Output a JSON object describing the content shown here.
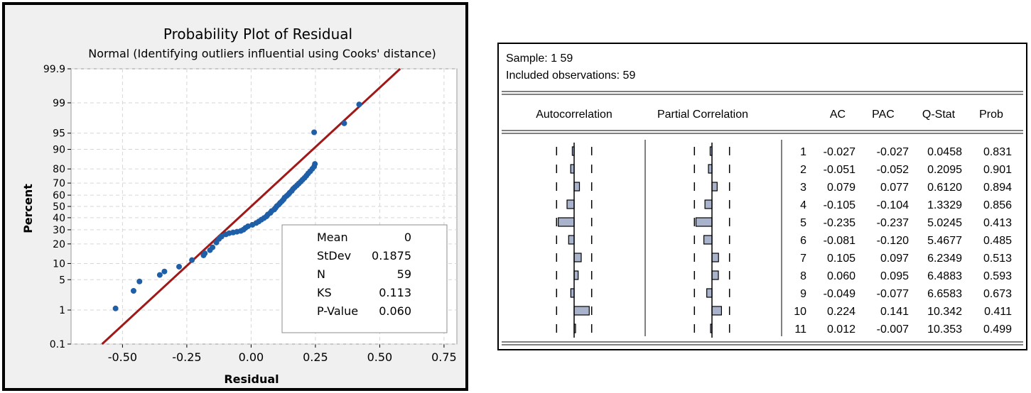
{
  "chart_data": [
    {
      "type": "scatter",
      "title": "Probability Plot of Residual",
      "subtitle": "Normal (Identifying outliers influential using Cooks' distance)",
      "xlabel": "Residual",
      "ylabel": "Percent",
      "xlim": [
        -0.7,
        0.8
      ],
      "x_ticks": [
        "-0.50",
        "-0.25",
        "0.00",
        "0.25",
        "0.50",
        "0.75"
      ],
      "x_tick_values": [
        -0.5,
        -0.25,
        0,
        0.25,
        0.5,
        0.75
      ],
      "y_scale": "normal-probability",
      "y_ticks": [
        "0.1",
        "1",
        "5",
        "10",
        "20",
        "30",
        "40",
        "50",
        "60",
        "70",
        "80",
        "90",
        "95",
        "99",
        "99.9"
      ],
      "y_tick_values": [
        0.1,
        1,
        5,
        10,
        20,
        30,
        40,
        50,
        60,
        70,
        80,
        90,
        95,
        99,
        99.9
      ],
      "grid": true,
      "fit_line": {
        "mean": 0,
        "stdev": 0.1875,
        "color": "#a01818"
      },
      "point_color": "#1f5fa8",
      "points": [
        [
          -0.527,
          1.1
        ],
        [
          -0.457,
          2.9
        ],
        [
          -0.434,
          4.6
        ],
        [
          -0.355,
          6.2
        ],
        [
          -0.337,
          7.2
        ],
        [
          -0.28,
          8.8
        ],
        [
          -0.23,
          11.4
        ],
        [
          -0.185,
          13.6
        ],
        [
          -0.18,
          14.6
        ],
        [
          -0.16,
          16.3
        ],
        [
          -0.15,
          17.9
        ],
        [
          -0.135,
          20.9
        ],
        [
          -0.125,
          23.3
        ],
        [
          -0.115,
          24.9
        ],
        [
          -0.098,
          26.5
        ],
        [
          -0.085,
          27.4
        ],
        [
          -0.07,
          27.9
        ],
        [
          -0.055,
          28.5
        ],
        [
          -0.04,
          29.1
        ],
        [
          -0.03,
          30.1
        ],
        [
          -0.022,
          31.5
        ],
        [
          -0.012,
          32.8
        ],
        [
          0.005,
          34.0
        ],
        [
          0.02,
          35.5
        ],
        [
          0.03,
          36.8
        ],
        [
          0.04,
          38.3
        ],
        [
          0.05,
          39.7
        ],
        [
          0.06,
          41.2
        ],
        [
          0.065,
          42.8
        ],
        [
          0.075,
          44.3
        ],
        [
          0.08,
          45.9
        ],
        [
          0.09,
          47.3
        ],
        [
          0.095,
          48.7
        ],
        [
          0.1,
          50.3
        ],
        [
          0.108,
          51.8
        ],
        [
          0.113,
          53.2
        ],
        [
          0.12,
          54.7
        ],
        [
          0.126,
          56.2
        ],
        [
          0.13,
          57.8
        ],
        [
          0.138,
          59.3
        ],
        [
          0.145,
          60.7
        ],
        [
          0.15,
          62.1
        ],
        [
          0.158,
          63.7
        ],
        [
          0.163,
          65.3
        ],
        [
          0.17,
          66.7
        ],
        [
          0.178,
          68.2
        ],
        [
          0.185,
          69.6
        ],
        [
          0.193,
          71.1
        ],
        [
          0.2,
          72.6
        ],
        [
          0.208,
          74.0
        ],
        [
          0.215,
          75.5
        ],
        [
          0.222,
          77.1
        ],
        [
          0.23,
          78.5
        ],
        [
          0.238,
          80.1
        ],
        [
          0.245,
          81.5
        ],
        [
          0.248,
          83.0
        ],
        [
          0.362,
          96.9
        ],
        [
          0.42,
          98.9
        ],
        [
          0.245,
          95.2
        ]
      ],
      "legend_box": {
        "rows": [
          {
            "label": "Mean",
            "value": "0"
          },
          {
            "label": "StDev",
            "value": "0.1875"
          },
          {
            "label": "N",
            "value": "59"
          },
          {
            "label": "KS",
            "value": "0.113"
          },
          {
            "label": "P-Value",
            "value": "0.060"
          }
        ]
      }
    },
    {
      "type": "table",
      "header_lines": [
        "Sample: 1 59",
        "Included observations: 59"
      ],
      "columns": [
        "Autocorrelation",
        "Partial Correlation",
        "",
        "AC",
        "PAC",
        "Q-Stat",
        "Prob"
      ],
      "rows": [
        {
          "lag": "1",
          "ac": "-0.027",
          "pac": "-0.027",
          "q": "0.0458",
          "prob": "0.831"
        },
        {
          "lag": "2",
          "ac": "-0.051",
          "pac": "-0.052",
          "q": "0.2095",
          "prob": "0.901"
        },
        {
          "lag": "3",
          "ac": "0.079",
          "pac": "0.077",
          "q": "0.6120",
          "prob": "0.894"
        },
        {
          "lag": "4",
          "ac": "-0.105",
          "pac": "-0.104",
          "q": "1.3329",
          "prob": "0.856"
        },
        {
          "lag": "5",
          "ac": "-0.235",
          "pac": "-0.237",
          "q": "5.0245",
          "prob": "0.413"
        },
        {
          "lag": "6",
          "ac": "-0.081",
          "pac": "-0.120",
          "q": "5.4677",
          "prob": "0.485"
        },
        {
          "lag": "7",
          "ac": "0.105",
          "pac": "0.097",
          "q": "6.2349",
          "prob": "0.513"
        },
        {
          "lag": "8",
          "ac": "0.060",
          "pac": "0.095",
          "q": "6.4883",
          "prob": "0.593"
        },
        {
          "lag": "9",
          "ac": "-0.049",
          "pac": "-0.077",
          "q": "6.6583",
          "prob": "0.673"
        },
        {
          "lag": "10",
          "ac": "0.224",
          "pac": "0.141",
          "q": "10.342",
          "prob": "0.411"
        },
        {
          "lag": "11",
          "ac": "0.012",
          "pac": "-0.007",
          "q": "10.353",
          "prob": "0.499"
        }
      ],
      "bar_color": "#a9b4cc",
      "confidence_bound": 0.26
    }
  ]
}
